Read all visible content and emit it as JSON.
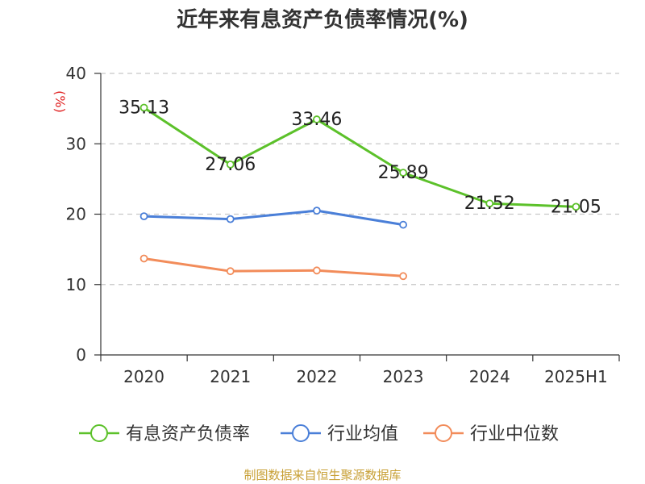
{
  "title": "近年来有息资产负债率情况(%)",
  "source": "制图数据来自恒生聚源数据库",
  "source_color": "#c8a036",
  "chart_data": {
    "type": "line",
    "title": "近年来有息资产负债率情况(%)",
    "ylabel": "(%)",
    "ylabel_color": "#e02020",
    "xlabel": "",
    "categories": [
      "2020",
      "2021",
      "2022",
      "2023",
      "2024",
      "2025H1"
    ],
    "yticks": [
      0,
      10,
      20,
      30,
      40
    ],
    "ylim": [
      0,
      40
    ],
    "grid": true,
    "legend_position": "bottom",
    "series": [
      {
        "name": "有息资产负债率",
        "color": "#5cc12a",
        "values": [
          35.13,
          27.06,
          33.46,
          25.89,
          21.52,
          21.05
        ],
        "labels": [
          "35.13",
          "27.06",
          "33.46",
          "25.89",
          "21.52",
          "21.05"
        ],
        "show_labels": true
      },
      {
        "name": "行业均值",
        "color": "#4a7fd8",
        "values": [
          19.7,
          19.3,
          20.5,
          18.5,
          null,
          null
        ],
        "show_labels": false
      },
      {
        "name": "行业中位数",
        "color": "#f28c5a",
        "values": [
          13.7,
          11.9,
          12.0,
          11.2,
          null,
          null
        ],
        "show_labels": false
      }
    ]
  }
}
